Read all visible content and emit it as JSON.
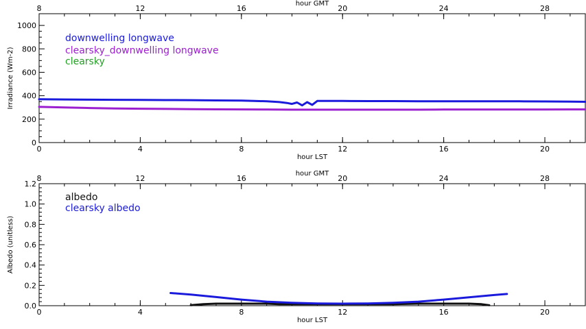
{
  "chart_data": [
    {
      "type": "line",
      "xlabel": "hour LST",
      "x2label": "hour GMT",
      "ylabel": "Irradiance (Wm-2)",
      "xlim": [
        0,
        21.6
      ],
      "ylim": [
        0,
        1100
      ],
      "x2_offset": 8,
      "xticks": [
        "0",
        "4",
        "8",
        "12",
        "16",
        "20"
      ],
      "x2ticks": [
        "8",
        "12",
        "16",
        "20",
        "24",
        "28"
      ],
      "yticks": [
        "0",
        "200",
        "400",
        "600",
        "800",
        "1000"
      ],
      "legend_position": "top-left",
      "grid": false,
      "series": [
        {
          "name": "downwelling longwave",
          "color": "#1a1adc",
          "x": [
            0,
            1,
            2,
            3,
            4,
            5,
            6,
            7,
            8,
            8.5,
            9,
            9.5,
            9.8,
            10.0,
            10.2,
            10.4,
            10.6,
            10.8,
            11.0,
            12,
            13,
            14,
            15,
            16,
            17,
            18,
            19,
            20,
            21,
            21.6
          ],
          "y": [
            370,
            368,
            366,
            365,
            364,
            363,
            362,
            360,
            358,
            356,
            352,
            346,
            338,
            330,
            342,
            318,
            345,
            322,
            355,
            355,
            354,
            354,
            353,
            353,
            353,
            352,
            352,
            351,
            350,
            348
          ]
        },
        {
          "name": "clearsky_downwelling longwave",
          "color": "#9b1fcf",
          "x": [
            0,
            1,
            2,
            3,
            4,
            5,
            6,
            7,
            8,
            9,
            10,
            11,
            12,
            13,
            14,
            15,
            16,
            17,
            18,
            19,
            20,
            21,
            21.6
          ],
          "y": [
            305,
            300,
            295,
            291,
            289,
            287,
            285,
            284,
            283,
            282,
            281,
            281,
            281,
            281,
            281,
            281,
            282,
            282,
            282,
            282,
            282,
            283,
            283
          ]
        },
        {
          "name": "clearsky",
          "color": "#22a022",
          "x": [],
          "y": []
        }
      ]
    },
    {
      "type": "line",
      "xlabel": "hour LST",
      "x2label": "hour GMT",
      "ylabel": "Albedo (unitless)",
      "xlim": [
        0,
        21.6
      ],
      "ylim": [
        0,
        1.2
      ],
      "x2_offset": 8,
      "xticks": [
        "0",
        "4",
        "8",
        "12",
        "16",
        "20"
      ],
      "x2ticks": [
        "8",
        "12",
        "16",
        "20",
        "24",
        "28"
      ],
      "yticks": [
        "0.0",
        "0.2",
        "0.4",
        "0.6",
        "0.8",
        "1.0",
        "1.2"
      ],
      "legend_position": "top-left",
      "grid": false,
      "series": [
        {
          "name": "albedo",
          "color": "#111111",
          "x": [
            6.0,
            6.5,
            7.0,
            7.5,
            8.0,
            8.5,
            9.0,
            9.5,
            10.0,
            10.5,
            11.0,
            12.0,
            13.0,
            14.0,
            15.0,
            15.5,
            16.0,
            16.5,
            17.0,
            17.5,
            17.8
          ],
          "y": [
            0.005,
            0.015,
            0.02,
            0.02,
            0.02,
            0.02,
            0.02,
            0.015,
            0.015,
            0.015,
            0.015,
            0.015,
            0.015,
            0.015,
            0.02,
            0.02,
            0.02,
            0.02,
            0.02,
            0.015,
            0.005
          ]
        },
        {
          "name": "clearsky albedo",
          "color": "#1a1adc",
          "x": [
            5.2,
            6,
            7,
            8,
            9,
            10,
            11,
            12,
            13,
            14,
            15,
            16,
            17,
            18,
            18.5
          ],
          "y": [
            0.125,
            0.11,
            0.085,
            0.06,
            0.04,
            0.028,
            0.022,
            0.02,
            0.022,
            0.028,
            0.04,
            0.06,
            0.082,
            0.105,
            0.115
          ]
        }
      ]
    }
  ]
}
